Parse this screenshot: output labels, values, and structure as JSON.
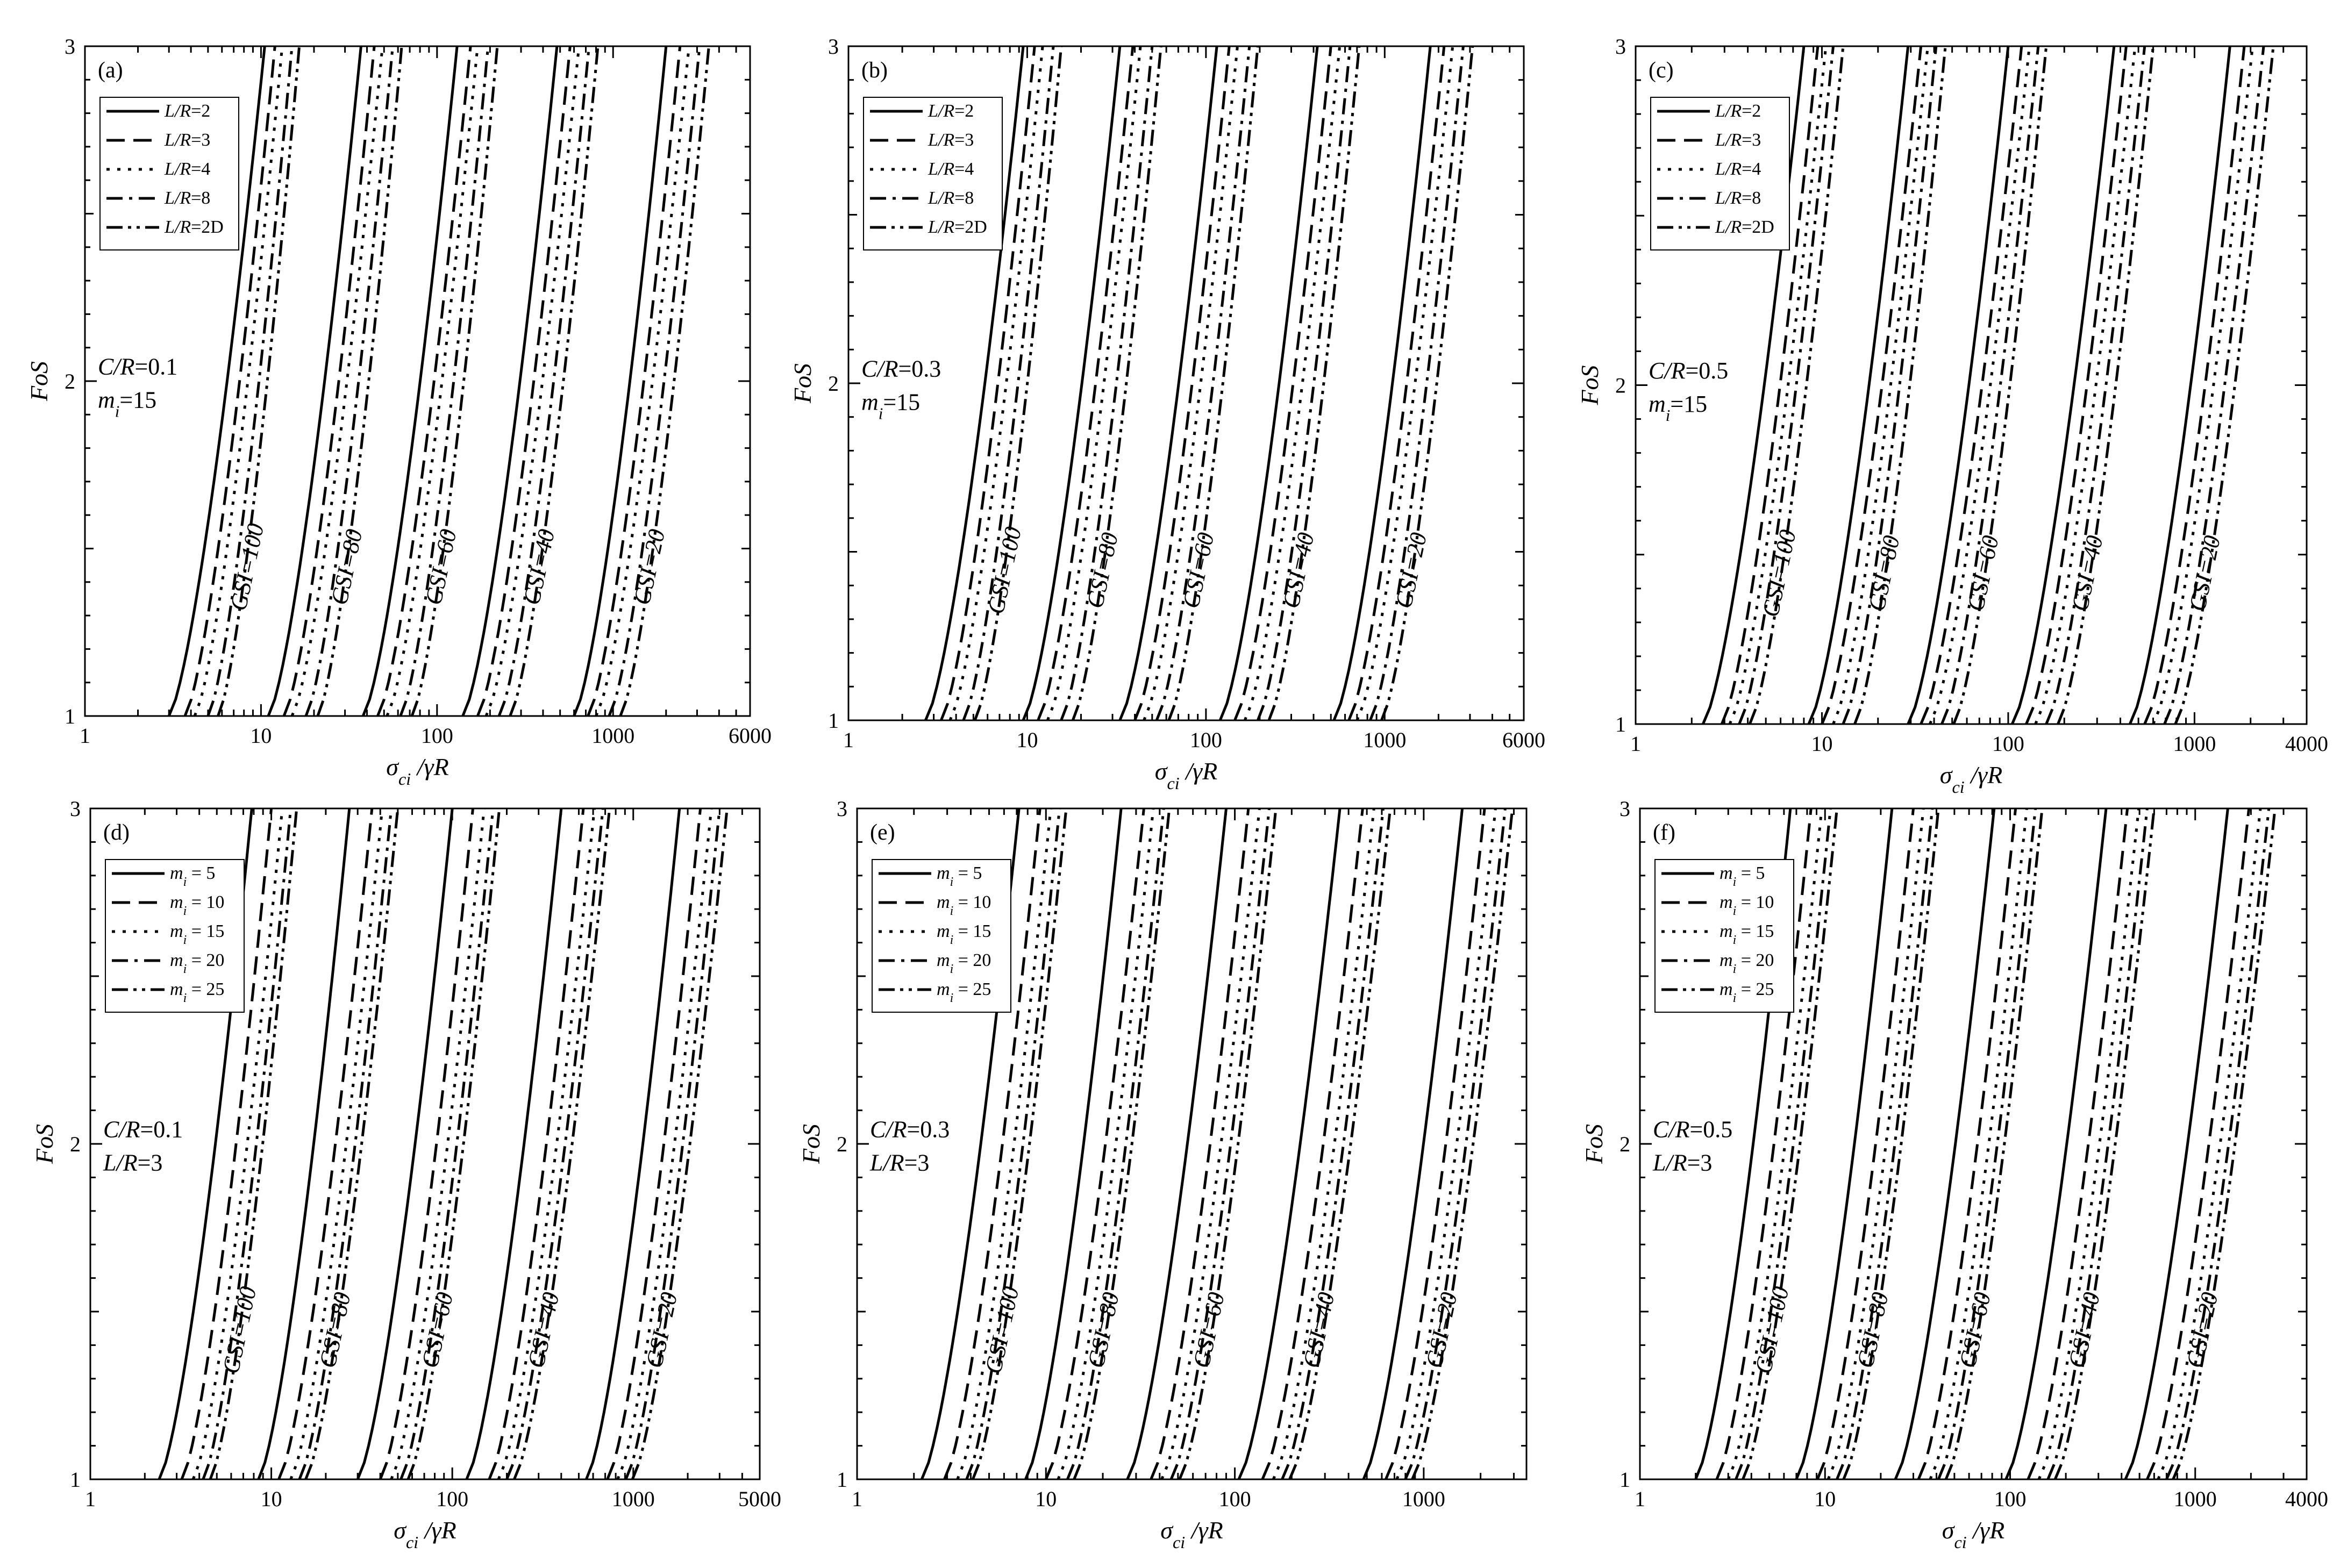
{
  "chart_data": [
    {
      "type": "line",
      "panel": "(a)",
      "xscale": "log",
      "xlim": [
        1,
        6000
      ],
      "ylim": [
        1,
        3
      ],
      "x_ticks": [
        "1",
        "10",
        "100",
        "1000",
        "6000"
      ],
      "y_ticks": [
        "1",
        "2",
        "3"
      ],
      "xlabel": "σci /γR",
      "ylabel": "FoS",
      "params": [
        "C/R=0.1",
        "mi=15"
      ],
      "legend": [
        "L/R=2",
        "L/R=3",
        "L/R=4",
        "L/R=8",
        "L/R=2D"
      ],
      "gsi_labels": [
        "GSI=100",
        "GSI=80",
        "GSI=60",
        "GSI=40",
        "GSI=20"
      ],
      "groups": [
        {
          "gsi": "GSI=100",
          "x_at_fos1": [
            3.0,
            3.7,
            4.2,
            5.0,
            5.7
          ],
          "x_at_fos3": [
            10.5,
            12.0,
            13.2,
            15.0,
            16.5
          ]
        },
        {
          "gsi": "GSI=80",
          "x_at_fos1": [
            11,
            13.5,
            15,
            18,
            21
          ],
          "x_at_fos3": [
            37,
            44,
            49,
            56,
            63
          ]
        },
        {
          "gsi": "GSI=60",
          "x_at_fos1": [
            38,
            46,
            52,
            62,
            72
          ],
          "x_at_fos3": [
            130,
            155,
            170,
            195,
            220
          ]
        },
        {
          "gsi": "GSI=40",
          "x_at_fos1": [
            140,
            170,
            190,
            225,
            260
          ],
          "x_at_fos3": [
            480,
            570,
            640,
            730,
            820
          ]
        },
        {
          "gsi": "GSI=20",
          "x_at_fos1": [
            600,
            720,
            800,
            950,
            1100
          ],
          "x_at_fos3": [
            2000,
            2400,
            2700,
            3100,
            3500
          ]
        }
      ]
    },
    {
      "type": "line",
      "panel": "(b)",
      "xscale": "log",
      "xlim": [
        1,
        6000
      ],
      "ylim": [
        1,
        3
      ],
      "x_ticks": [
        "1",
        "10",
        "100",
        "1000",
        "6000"
      ],
      "y_ticks": [
        "1",
        "2",
        "3"
      ],
      "xlabel": "σci /γR",
      "ylabel": "FoS",
      "params": [
        "C/R=0.3",
        "mi=15"
      ],
      "legend": [
        "L/R=2",
        "L/R=3",
        "L/R=4",
        "L/R=8",
        "L/R=2D"
      ],
      "gsi_labels": [
        "GSI=100",
        "GSI=80",
        "GSI=60",
        "GSI=40",
        "GSI=20"
      ],
      "groups": [
        {
          "gsi": "GSI=100",
          "x_at_fos1": [
            2.7,
            3.3,
            3.7,
            4.4,
            5.1
          ],
          "x_at_fos3": [
            9.5,
            11.0,
            12.2,
            14.0,
            15.5
          ]
        },
        {
          "gsi": "GSI=80",
          "x_at_fos1": [
            9.5,
            11.5,
            13,
            15.5,
            18
          ],
          "x_at_fos3": [
            33,
            39,
            43,
            50,
            56
          ]
        },
        {
          "gsi": "GSI=60",
          "x_at_fos1": [
            33,
            40,
            45,
            53,
            62
          ],
          "x_at_fos3": [
            115,
            135,
            150,
            175,
            195
          ]
        },
        {
          "gsi": "GSI=40",
          "x_at_fos1": [
            120,
            145,
            165,
            195,
            225
          ],
          "x_at_fos3": [
            420,
            500,
            560,
            640,
            720
          ]
        },
        {
          "gsi": "GSI=20",
          "x_at_fos1": [
            520,
            630,
            700,
            830,
            960
          ],
          "x_at_fos3": [
            1800,
            2150,
            2400,
            2750,
            3100
          ]
        }
      ]
    },
    {
      "type": "line",
      "panel": "(c)",
      "xscale": "log",
      "xlim": [
        1,
        4000
      ],
      "ylim": [
        1,
        3
      ],
      "x_ticks": [
        "1",
        "10",
        "100",
        "1000",
        "4000"
      ],
      "y_ticks": [
        "1",
        "2",
        "3"
      ],
      "xlabel": "σci /γR",
      "ylabel": "FoS",
      "params": [
        "C/R=0.5",
        "mi=15"
      ],
      "legend": [
        "L/R=2",
        "L/R=3",
        "L/R=4",
        "L/R=8",
        "L/R=2D"
      ],
      "gsi_labels": [
        "GSI=100",
        "GSI=80",
        "GSI=60",
        "GSI=40",
        "GSI=20"
      ],
      "groups": [
        {
          "gsi": "GSI=100",
          "x_at_fos1": [
            2.3,
            2.9,
            3.2,
            3.6,
            4.1
          ],
          "x_at_fos3": [
            8.0,
            9.5,
            10.5,
            11.5,
            13.0
          ]
        },
        {
          "gsi": "GSI=80",
          "x_at_fos1": [
            8.5,
            10,
            11.5,
            13,
            15
          ],
          "x_at_fos3": [
            29,
            34,
            37,
            41,
            46
          ]
        },
        {
          "gsi": "GSI=60",
          "x_at_fos1": [
            29,
            34,
            38,
            44,
            51
          ],
          "x_at_fos3": [
            100,
            118,
            130,
            145,
            160
          ]
        },
        {
          "gsi": "GSI=40",
          "x_at_fos1": [
            105,
            125,
            140,
            160,
            185
          ],
          "x_at_fos3": [
            370,
            430,
            480,
            540,
            600
          ]
        },
        {
          "gsi": "GSI=20",
          "x_at_fos1": [
            450,
            540,
            600,
            690,
            790
          ],
          "x_at_fos3": [
            1550,
            1850,
            2050,
            2350,
            2650
          ]
        }
      ]
    },
    {
      "type": "line",
      "panel": "(d)",
      "xscale": "log",
      "xlim": [
        1,
        5000
      ],
      "ylim": [
        1,
        3
      ],
      "x_ticks": [
        "1",
        "10",
        "100",
        "1000",
        "5000"
      ],
      "y_ticks": [
        "1",
        "2",
        "3"
      ],
      "xlabel": "σci /γR",
      "ylabel": "FoS",
      "params": [
        "C/R=0.1",
        "L/R=3"
      ],
      "legend": [
        "mi = 5",
        "mi = 10",
        "mi = 15",
        "mi = 20",
        "mi = 25"
      ],
      "gsi_labels": [
        "GSI=100",
        "GSI=80",
        "GSI=60",
        "GSI=40",
        "GSI=20"
      ],
      "groups": [
        {
          "gsi": "GSI=100",
          "x_at_fos1": [
            2.4,
            3.2,
            3.7,
            4.2,
            4.6
          ],
          "x_at_fos3": [
            7.8,
            10.0,
            11.5,
            12.8,
            13.8
          ]
        },
        {
          "gsi": "GSI=80",
          "x_at_fos1": [
            8.5,
            11,
            12.8,
            14.3,
            15.5
          ],
          "x_at_fos3": [
            27,
            36,
            41,
            46,
            50
          ]
        },
        {
          "gsi": "GSI=60",
          "x_at_fos1": [
            30,
            40,
            46,
            52,
            57
          ],
          "x_at_fos3": [
            100,
            130,
            150,
            168,
            182
          ]
        },
        {
          "gsi": "GSI=40",
          "x_at_fos1": [
            120,
            160,
            180,
            200,
            220
          ],
          "x_at_fos3": [
            400,
            530,
            610,
            680,
            740
          ]
        },
        {
          "gsi": "GSI=20",
          "x_at_fos1": [
            550,
            720,
            820,
            910,
            990
          ],
          "x_at_fos3": [
            1800,
            2350,
            2700,
            3000,
            3300
          ]
        }
      ]
    },
    {
      "type": "line",
      "panel": "(e)",
      "xscale": "log",
      "xlim": [
        1,
        3500
      ],
      "ylim": [
        1,
        3
      ],
      "x_ticks": [
        "1",
        "10",
        "100",
        "1000"
      ],
      "y_ticks": [
        "1",
        "2",
        "3"
      ],
      "xlabel": "σci /γR",
      "ylabel": "FoS",
      "params": [
        "C/R=0.3",
        "L/R=3"
      ],
      "legend": [
        "mi = 5",
        "mi = 10",
        "mi = 15",
        "mi = 20",
        "mi = 25"
      ],
      "gsi_labels": [
        "GSI=100",
        "GSI=80",
        "GSI=60",
        "GSI=40",
        "GSI=20"
      ],
      "groups": [
        {
          "gsi": "GSI=100",
          "x_at_fos1": [
            2.2,
            2.9,
            3.4,
            3.8,
            4.1
          ],
          "x_at_fos3": [
            7.2,
            9.3,
            10.6,
            11.8,
            12.8
          ]
        },
        {
          "gsi": "GSI=80",
          "x_at_fos1": [
            7.8,
            10,
            11.6,
            13,
            14.1
          ],
          "x_at_fos3": [
            25,
            33,
            37,
            42,
            45
          ]
        },
        {
          "gsi": "GSI=60",
          "x_at_fos1": [
            27,
            36,
            41,
            46,
            51
          ],
          "x_at_fos3": [
            90,
            118,
            135,
            152,
            165
          ]
        },
        {
          "gsi": "GSI=40",
          "x_at_fos1": [
            105,
            140,
            160,
            178,
            195
          ],
          "x_at_fos3": [
            360,
            475,
            545,
            610,
            665
          ]
        },
        {
          "gsi": "GSI=20",
          "x_at_fos1": [
            480,
            630,
            720,
            800,
            870
          ],
          "x_at_fos3": [
            1600,
            2100,
            2400,
            2700,
            2950
          ]
        }
      ]
    },
    {
      "type": "line",
      "panel": "(f)",
      "xscale": "log",
      "xlim": [
        1,
        4000
      ],
      "ylim": [
        1,
        3
      ],
      "x_ticks": [
        "1",
        "10",
        "100",
        "1000",
        "4000"
      ],
      "y_ticks": [
        "1",
        "2",
        "3"
      ],
      "xlabel": "σci /γR",
      "ylabel": "FoS",
      "params": [
        "C/R=0.5",
        "L/R=3"
      ],
      "legend": [
        "mi = 5",
        "mi = 10",
        "mi = 15",
        "mi = 20",
        "mi = 25"
      ],
      "gsi_labels": [
        "GSI=100",
        "GSI=80",
        "GSI=60",
        "GSI=40",
        "GSI=20"
      ],
      "groups": [
        {
          "gsi": "GSI=100",
          "x_at_fos1": [
            2.0,
            2.6,
            3.0,
            3.3,
            3.6
          ],
          "x_at_fos3": [
            6.5,
            8.4,
            9.6,
            10.7,
            11.6
          ]
        },
        {
          "gsi": "GSI=80",
          "x_at_fos1": [
            7.0,
            9.1,
            10.4,
            11.6,
            12.6
          ],
          "x_at_fos3": [
            23,
            30,
            34,
            38,
            41
          ]
        },
        {
          "gsi": "GSI=60",
          "x_at_fos1": [
            24,
            32,
            37,
            41,
            45
          ],
          "x_at_fos3": [
            82,
            107,
            123,
            137,
            149
          ]
        },
        {
          "gsi": "GSI=40",
          "x_at_fos1": [
            95,
            125,
            143,
            160,
            175
          ],
          "x_at_fos3": [
            330,
            430,
            495,
            550,
            600
          ]
        },
        {
          "gsi": "GSI=20",
          "x_at_fos1": [
            420,
            550,
            630,
            700,
            760
          ],
          "x_at_fos3": [
            1500,
            1950,
            2250,
            2500,
            2700
          ]
        }
      ]
    }
  ],
  "line_styles": [
    "solid",
    "dash",
    "dot",
    "dash-dot",
    "dash-dot-dot"
  ],
  "line_color": "#000000"
}
